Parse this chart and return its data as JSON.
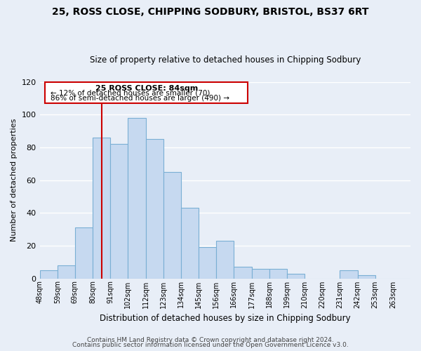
{
  "title": "25, ROSS CLOSE, CHIPPING SODBURY, BRISTOL, BS37 6RT",
  "subtitle": "Size of property relative to detached houses in Chipping Sodbury",
  "xlabel": "Distribution of detached houses by size in Chipping Sodbury",
  "ylabel": "Number of detached properties",
  "footer_line1": "Contains HM Land Registry data © Crown copyright and database right 2024.",
  "footer_line2": "Contains public sector information licensed under the Open Government Licence v3.0.",
  "bin_labels": [
    "48sqm",
    "59sqm",
    "69sqm",
    "80sqm",
    "91sqm",
    "102sqm",
    "112sqm",
    "123sqm",
    "134sqm",
    "145sqm",
    "156sqm",
    "166sqm",
    "177sqm",
    "188sqm",
    "199sqm",
    "210sqm",
    "220sqm",
    "231sqm",
    "242sqm",
    "253sqm",
    "263sqm"
  ],
  "bar_heights": [
    5,
    8,
    31,
    86,
    82,
    98,
    85,
    65,
    43,
    19,
    23,
    7,
    6,
    6,
    3,
    0,
    0,
    5,
    2,
    0,
    0
  ],
  "bar_color": "#c6d9f0",
  "bar_edge_color": "#7aafd4",
  "ylim": [
    0,
    120
  ],
  "yticks": [
    0,
    20,
    40,
    60,
    80,
    100,
    120
  ],
  "vline_x_index": 3.5,
  "property_label": "25 ROSS CLOSE: 84sqm",
  "annotation_line1": "← 12% of detached houses are smaller (70)",
  "annotation_line2": "86% of semi-detached houses are larger (490) →",
  "box_color": "#ffffff",
  "box_edge_color": "#cc0000",
  "vline_color": "#cc0000",
  "background_color": "#e8eef7",
  "grid_color": "#ffffff"
}
